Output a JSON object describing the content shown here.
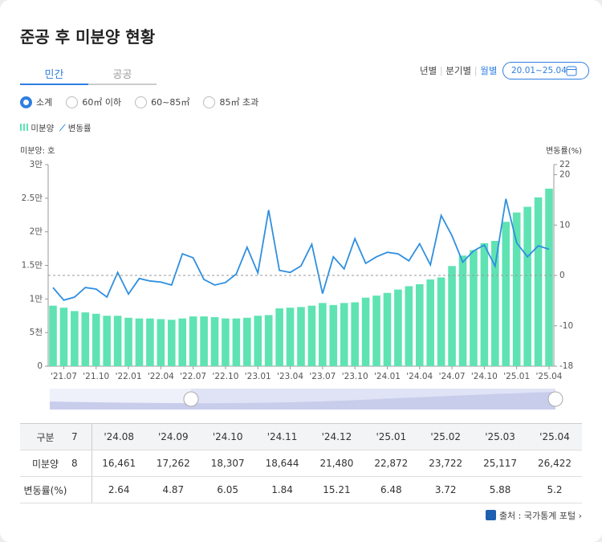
{
  "header": {
    "title": "준공 후 미분양 현황"
  },
  "tabs": [
    "민간",
    "공공"
  ],
  "period_options": [
    "년별",
    "분기별",
    "월별"
  ],
  "date_range": "20.01~25.04",
  "size_filters": [
    "소계",
    "60㎡ 이하",
    "60~85㎡",
    "85㎡ 초과"
  ],
  "chart_data": {
    "type": "bar",
    "y_axis_label": "미분양: 호",
    "y2_axis_label": "변동률(%)",
    "categories": [
      null,
      "'21.07",
      null,
      null,
      "'21.10",
      null,
      null,
      "'22.01",
      null,
      null,
      "'22.04",
      null,
      null,
      "'22.07",
      null,
      null,
      "'22.10",
      null,
      null,
      "'23.01",
      null,
      null,
      "'23.04",
      null,
      null,
      "'23.07",
      null,
      null,
      "'23.10",
      null,
      null,
      "'24.01",
      null,
      null,
      "'24.04",
      null,
      null,
      "'24.07",
      null,
      null,
      "'24.10",
      null,
      null,
      "'25.01",
      null,
      null,
      "'25.04"
    ],
    "series": [
      {
        "name": "미분양",
        "color": "#5fe3b3",
        "values": [
          9000,
          8700,
          8200,
          8000,
          7800,
          7500,
          7500,
          7200,
          7100,
          7100,
          7000,
          6900,
          7100,
          7400,
          7400,
          7300,
          7100,
          7100,
          7200,
          7500,
          7600,
          8600,
          8700,
          8800,
          9000,
          9400,
          9100,
          9400,
          9500,
          10200,
          10500,
          10900,
          11400,
          11900,
          12200,
          12900,
          13200,
          14900,
          16461,
          17262,
          18307,
          18644,
          21480,
          22872,
          23722,
          25117,
          26422
        ]
      },
      {
        "name": "변동률",
        "color": "#2f8fe0",
        "type": "line",
        "axis": "y2",
        "values": [
          -2.4,
          -4.9,
          -4.3,
          -2.4,
          -2.7,
          -4.3,
          0.6,
          -3.7,
          -0.6,
          -1.1,
          -1.3,
          -1.9,
          4.3,
          3.5,
          -0.8,
          -1.9,
          -1.4,
          0.3,
          5.6,
          0.5,
          13.0,
          1.0,
          0.6,
          1.9,
          6.2,
          -3.6,
          3.7,
          1.3,
          7.3,
          2.4,
          3.7,
          4.6,
          4.3,
          2.9,
          6.3,
          2.1,
          11.9,
          7.9,
          2.64,
          4.87,
          6.05,
          1.84,
          15.21,
          6.48,
          3.72,
          5.88,
          5.2
        ]
      }
    ],
    "ylim": [
      0,
      30000
    ],
    "yticks": [
      0,
      {
        "value": 5000,
        "label": "5천"
      },
      {
        "value": 10000,
        "label": "1만"
      },
      {
        "value": 15000,
        "label": "1.5만"
      },
      {
        "value": 20000,
        "label": "2만"
      },
      {
        "value": 25000,
        "label": "2.5만"
      },
      {
        "value": 30000,
        "label": "3만"
      }
    ],
    "y2lim": [
      -18,
      22
    ],
    "y2ticks": [
      -18,
      -10,
      0,
      10,
      20,
      22
    ],
    "zero_line": true
  },
  "table": {
    "header": [
      "구분",
      "7",
      "'24.08",
      "'24.09",
      "'24.10",
      "'24.11",
      "'24.12",
      "'25.01",
      "'25.02",
      "'25.03",
      "'25.04"
    ],
    "rows": [
      [
        "미분양",
        "8",
        "16,461",
        "17,262",
        "18,307",
        "18,644",
        "21,480",
        "22,872",
        "23,722",
        "25,117",
        "26,422"
      ],
      [
        "변동률(%)",
        null,
        "2.64",
        "4.87",
        "6.05",
        "1.84",
        "15.21",
        "6.48",
        "3.72",
        "5.88",
        "5.2"
      ]
    ]
  },
  "source": "출처 : 국가통계 포털"
}
